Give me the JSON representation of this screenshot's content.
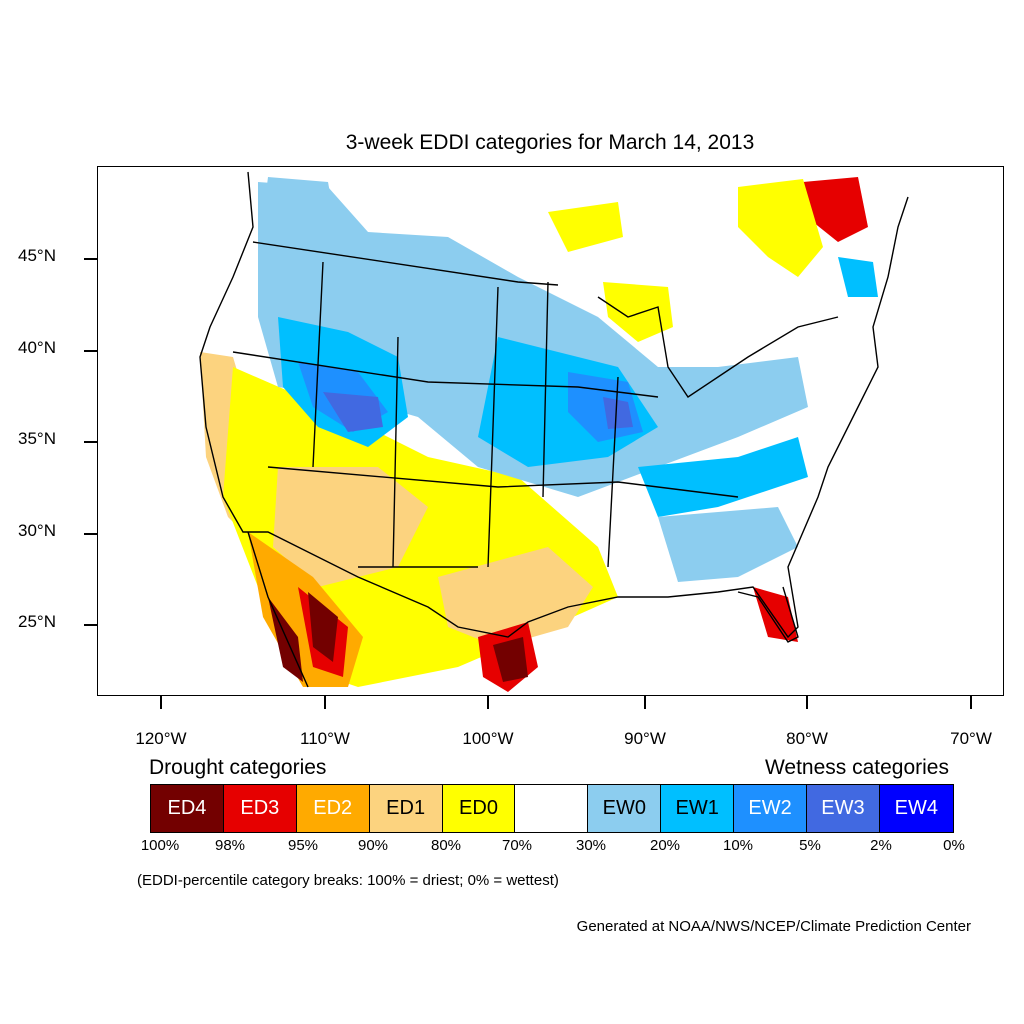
{
  "title": "3-week EDDI categories for March 14, 2013",
  "lat_labels": [
    "45°N",
    "40°N",
    "35°N",
    "30°N",
    "25°N"
  ],
  "lon_labels": [
    "120°W",
    "110°W",
    "100°W",
    "90°W",
    "80°W",
    "70°W"
  ],
  "legend": {
    "drought_heading": "Drought categories",
    "wetness_heading": "Wetness categories",
    "categories": [
      {
        "label": "ED4",
        "color": "#730000",
        "text_color": "#ffffff"
      },
      {
        "label": "ED3",
        "color": "#e60000",
        "text_color": "#ffffff"
      },
      {
        "label": "ED2",
        "color": "#ffaa00",
        "text_color": "#ffffff"
      },
      {
        "label": "ED1",
        "color": "#fcd37f",
        "text_color": "#000000"
      },
      {
        "label": "ED0",
        "color": "#ffff00",
        "text_color": "#000000"
      },
      {
        "label": "",
        "color": "#ffffff",
        "text_color": "#000000"
      },
      {
        "label": "EW0",
        "color": "#8ccdef",
        "text_color": "#000000"
      },
      {
        "label": "EW1",
        "color": "#00bfff",
        "text_color": "#000000"
      },
      {
        "label": "EW2",
        "color": "#1e90ff",
        "text_color": "#ffffff"
      },
      {
        "label": "EW3",
        "color": "#4169e1",
        "text_color": "#ffffff"
      },
      {
        "label": "EW4",
        "color": "#0000ff",
        "text_color": "#ffffff"
      }
    ],
    "breaks": [
      "100%",
      "98%",
      "95%",
      "90%",
      "80%",
      "70%",
      "30%",
      "20%",
      "10%",
      "5%",
      "2%",
      "0%"
    ]
  },
  "footnote": "(EDDI-percentile category breaks: 100% = driest; 0% = wettest)",
  "credit": "Generated at NOAA/NWS/NCEP/Climate Prediction Center"
}
